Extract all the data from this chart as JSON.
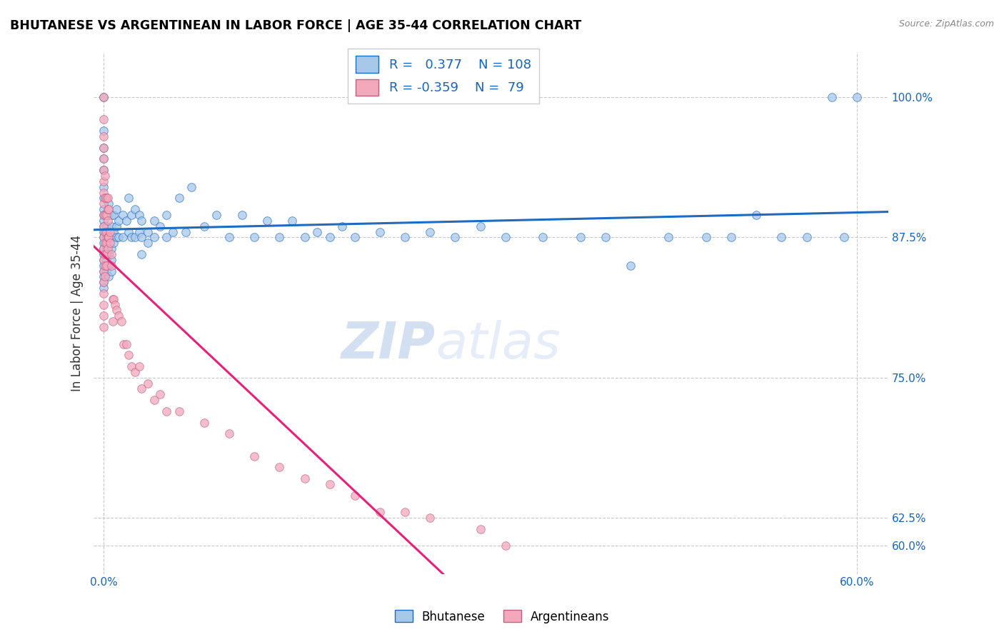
{
  "title": "BHUTANESE VS ARGENTINEAN IN LABOR FORCE | AGE 35-44 CORRELATION CHART",
  "source": "Source: ZipAtlas.com",
  "ylabel": "In Labor Force | Age 35-44",
  "ytick_vals": [
    0.6,
    0.625,
    0.75,
    0.875,
    1.0
  ],
  "ytick_labels": [
    "60.0%",
    "62.5%",
    "75.0%",
    "87.5%",
    "100.0%"
  ],
  "xtick_vals": [
    0.0,
    0.6
  ],
  "xtick_labels": [
    "0.0%",
    "60.0%"
  ],
  "xlim": [
    -0.008,
    0.625
  ],
  "ylim": [
    0.575,
    1.04
  ],
  "blue_R": 0.377,
  "blue_N": 108,
  "pink_R": -0.359,
  "pink_N": 79,
  "blue_color": "#A8C8EA",
  "pink_color": "#F4A8BC",
  "blue_line_color": "#1E6BC0",
  "pink_line_color": "#E8207A",
  "blue_scatter": [
    [
      0.0,
      1.0
    ],
    [
      0.0,
      0.97
    ],
    [
      0.0,
      0.955
    ],
    [
      0.0,
      0.945
    ],
    [
      0.0,
      0.935
    ],
    [
      0.0,
      0.92
    ],
    [
      0.0,
      0.91
    ],
    [
      0.0,
      0.9
    ],
    [
      0.0,
      0.895
    ],
    [
      0.0,
      0.89
    ],
    [
      0.0,
      0.885
    ],
    [
      0.0,
      0.88
    ],
    [
      0.0,
      0.875
    ],
    [
      0.0,
      0.87
    ],
    [
      0.0,
      0.865
    ],
    [
      0.0,
      0.86
    ],
    [
      0.0,
      0.855
    ],
    [
      0.0,
      0.85
    ],
    [
      0.0,
      0.845
    ],
    [
      0.0,
      0.84
    ],
    [
      0.0,
      0.835
    ],
    [
      0.0,
      0.83
    ],
    [
      0.002,
      0.91
    ],
    [
      0.002,
      0.895
    ],
    [
      0.002,
      0.885
    ],
    [
      0.002,
      0.875
    ],
    [
      0.002,
      0.865
    ],
    [
      0.002,
      0.855
    ],
    [
      0.002,
      0.845
    ],
    [
      0.004,
      0.905
    ],
    [
      0.004,
      0.895
    ],
    [
      0.004,
      0.88
    ],
    [
      0.004,
      0.87
    ],
    [
      0.004,
      0.86
    ],
    [
      0.004,
      0.85
    ],
    [
      0.004,
      0.84
    ],
    [
      0.006,
      0.895
    ],
    [
      0.006,
      0.885
    ],
    [
      0.006,
      0.875
    ],
    [
      0.006,
      0.865
    ],
    [
      0.006,
      0.855
    ],
    [
      0.006,
      0.845
    ],
    [
      0.008,
      0.895
    ],
    [
      0.008,
      0.88
    ],
    [
      0.008,
      0.87
    ],
    [
      0.01,
      0.9
    ],
    [
      0.01,
      0.885
    ],
    [
      0.01,
      0.875
    ],
    [
      0.012,
      0.89
    ],
    [
      0.012,
      0.875
    ],
    [
      0.015,
      0.895
    ],
    [
      0.015,
      0.875
    ],
    [
      0.018,
      0.89
    ],
    [
      0.02,
      0.91
    ],
    [
      0.02,
      0.88
    ],
    [
      0.022,
      0.895
    ],
    [
      0.022,
      0.875
    ],
    [
      0.025,
      0.9
    ],
    [
      0.025,
      0.875
    ],
    [
      0.028,
      0.895
    ],
    [
      0.028,
      0.88
    ],
    [
      0.03,
      0.89
    ],
    [
      0.03,
      0.875
    ],
    [
      0.03,
      0.86
    ],
    [
      0.035,
      0.88
    ],
    [
      0.035,
      0.87
    ],
    [
      0.04,
      0.89
    ],
    [
      0.04,
      0.875
    ],
    [
      0.045,
      0.885
    ],
    [
      0.05,
      0.895
    ],
    [
      0.05,
      0.875
    ],
    [
      0.055,
      0.88
    ],
    [
      0.06,
      0.91
    ],
    [
      0.065,
      0.88
    ],
    [
      0.07,
      0.92
    ],
    [
      0.08,
      0.885
    ],
    [
      0.09,
      0.895
    ],
    [
      0.1,
      0.875
    ],
    [
      0.11,
      0.895
    ],
    [
      0.12,
      0.875
    ],
    [
      0.13,
      0.89
    ],
    [
      0.14,
      0.875
    ],
    [
      0.15,
      0.89
    ],
    [
      0.16,
      0.875
    ],
    [
      0.17,
      0.88
    ],
    [
      0.18,
      0.875
    ],
    [
      0.19,
      0.885
    ],
    [
      0.2,
      0.875
    ],
    [
      0.22,
      0.88
    ],
    [
      0.24,
      0.875
    ],
    [
      0.26,
      0.88
    ],
    [
      0.28,
      0.875
    ],
    [
      0.3,
      0.885
    ],
    [
      0.32,
      0.875
    ],
    [
      0.35,
      0.875
    ],
    [
      0.38,
      0.875
    ],
    [
      0.4,
      0.875
    ],
    [
      0.42,
      0.85
    ],
    [
      0.45,
      0.875
    ],
    [
      0.48,
      0.875
    ],
    [
      0.5,
      0.875
    ],
    [
      0.52,
      0.895
    ],
    [
      0.54,
      0.875
    ],
    [
      0.56,
      0.875
    ],
    [
      0.58,
      1.0
    ],
    [
      0.59,
      0.875
    ],
    [
      0.6,
      1.0
    ]
  ],
  "pink_scatter": [
    [
      0.0,
      1.0
    ],
    [
      0.0,
      0.98
    ],
    [
      0.0,
      0.965
    ],
    [
      0.0,
      0.955
    ],
    [
      0.0,
      0.945
    ],
    [
      0.0,
      0.935
    ],
    [
      0.0,
      0.925
    ],
    [
      0.0,
      0.915
    ],
    [
      0.0,
      0.905
    ],
    [
      0.0,
      0.895
    ],
    [
      0.0,
      0.885
    ],
    [
      0.0,
      0.875
    ],
    [
      0.0,
      0.865
    ],
    [
      0.0,
      0.855
    ],
    [
      0.0,
      0.845
    ],
    [
      0.0,
      0.835
    ],
    [
      0.0,
      0.825
    ],
    [
      0.0,
      0.815
    ],
    [
      0.0,
      0.805
    ],
    [
      0.0,
      0.795
    ],
    [
      0.001,
      0.93
    ],
    [
      0.001,
      0.91
    ],
    [
      0.001,
      0.895
    ],
    [
      0.001,
      0.88
    ],
    [
      0.001,
      0.87
    ],
    [
      0.001,
      0.86
    ],
    [
      0.001,
      0.85
    ],
    [
      0.001,
      0.84
    ],
    [
      0.002,
      0.91
    ],
    [
      0.002,
      0.895
    ],
    [
      0.002,
      0.88
    ],
    [
      0.002,
      0.87
    ],
    [
      0.002,
      0.86
    ],
    [
      0.002,
      0.85
    ],
    [
      0.003,
      0.91
    ],
    [
      0.003,
      0.9
    ],
    [
      0.003,
      0.89
    ],
    [
      0.003,
      0.875
    ],
    [
      0.003,
      0.865
    ],
    [
      0.004,
      0.9
    ],
    [
      0.004,
      0.875
    ],
    [
      0.005,
      0.88
    ],
    [
      0.005,
      0.87
    ],
    [
      0.006,
      0.86
    ],
    [
      0.006,
      0.85
    ],
    [
      0.007,
      0.82
    ],
    [
      0.007,
      0.8
    ],
    [
      0.008,
      0.82
    ],
    [
      0.009,
      0.815
    ],
    [
      0.01,
      0.81
    ],
    [
      0.012,
      0.805
    ],
    [
      0.014,
      0.8
    ],
    [
      0.016,
      0.78
    ],
    [
      0.018,
      0.78
    ],
    [
      0.02,
      0.77
    ],
    [
      0.022,
      0.76
    ],
    [
      0.025,
      0.755
    ],
    [
      0.028,
      0.76
    ],
    [
      0.03,
      0.74
    ],
    [
      0.035,
      0.745
    ],
    [
      0.04,
      0.73
    ],
    [
      0.045,
      0.735
    ],
    [
      0.05,
      0.72
    ],
    [
      0.06,
      0.72
    ],
    [
      0.08,
      0.71
    ],
    [
      0.1,
      0.7
    ],
    [
      0.12,
      0.68
    ],
    [
      0.14,
      0.67
    ],
    [
      0.16,
      0.66
    ],
    [
      0.18,
      0.655
    ],
    [
      0.2,
      0.645
    ],
    [
      0.22,
      0.63
    ],
    [
      0.24,
      0.63
    ],
    [
      0.26,
      0.625
    ],
    [
      0.3,
      0.615
    ],
    [
      0.32,
      0.6
    ]
  ],
  "watermark_zip": "ZIP",
  "watermark_atlas": "atlas",
  "legend_blue_label": "Bhutanese",
  "legend_pink_label": "Argentineans"
}
